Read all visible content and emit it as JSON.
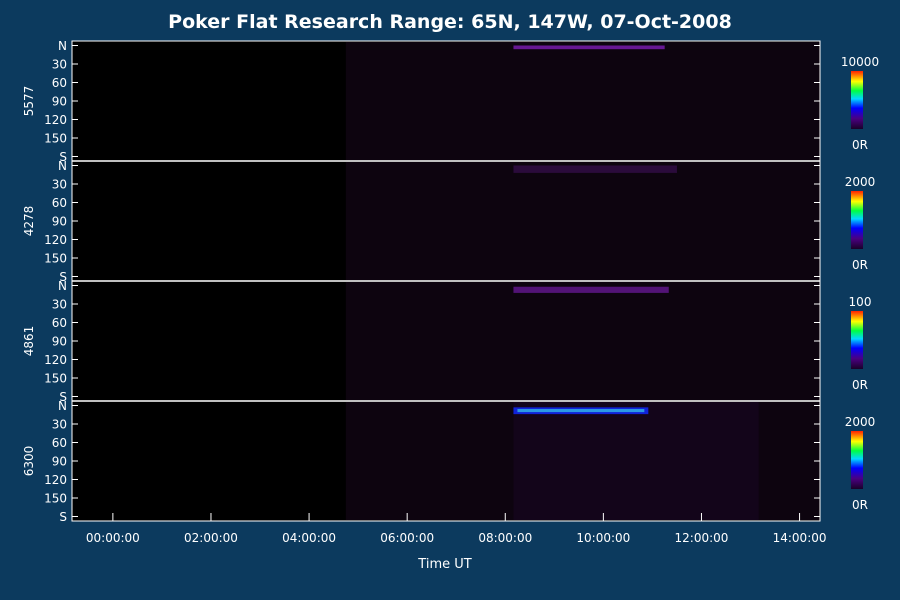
{
  "colors": {
    "background": "#0c3a5e",
    "plot_background": "#000000",
    "foreground": "#ffffff"
  },
  "chart_data": {
    "type": "heatmap",
    "title": "Poker Flat Research Range: 65N, 147W, 07-Oct-2008",
    "xlabel": "Time UT",
    "x_ticks": [
      "00:00:00",
      "02:00:00",
      "04:00:00",
      "06:00:00",
      "08:00:00",
      "10:00:00",
      "12:00:00",
      "14:00:00"
    ],
    "xlim": [
      "23:10:00",
      "14:25:00"
    ],
    "y_ticks": [
      "N",
      "30",
      "60",
      "90",
      "120",
      "150",
      "S"
    ],
    "ylim": [
      0,
      180
    ],
    "panels": [
      {
        "wavelength": "5577",
        "colorbar_max": "10000",
        "colorbar_min": "0R",
        "observation_start": "04:45:00",
        "features": [
          {
            "type": "arc",
            "time_start": "08:10:00",
            "time_end": "11:15:00",
            "angle_start": 0,
            "angle_end": 6,
            "intensity": 0.18
          }
        ]
      },
      {
        "wavelength": "4278",
        "colorbar_max": "2000",
        "colorbar_min": "0R",
        "observation_start": "04:45:00",
        "features": [
          {
            "type": "arc",
            "time_start": "08:10:00",
            "time_end": "11:30:00",
            "angle_start": 0,
            "angle_end": 12,
            "intensity": 0.06
          }
        ]
      },
      {
        "wavelength": "4861",
        "colorbar_max": "100",
        "colorbar_min": "0R",
        "observation_start": "04:45:00",
        "features": [
          {
            "type": "arc",
            "time_start": "08:10:00",
            "time_end": "11:20:00",
            "angle_start": 2,
            "angle_end": 12,
            "intensity": 0.14
          }
        ]
      },
      {
        "wavelength": "6300",
        "colorbar_max": "2000",
        "colorbar_min": "0R",
        "observation_start": "04:45:00",
        "features": [
          {
            "type": "arc",
            "time_start": "08:10:00",
            "time_end": "10:55:00",
            "angle_start": 3,
            "angle_end": 14,
            "intensity": 0.58
          },
          {
            "type": "glow",
            "time_start": "08:10:00",
            "time_end": "13:10:00",
            "angle_start": 0,
            "angle_end": 180,
            "intensity": 0.1
          }
        ]
      }
    ]
  }
}
